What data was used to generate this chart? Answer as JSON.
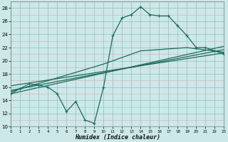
{
  "xlabel": "Humidex (Indice chaleur)",
  "bg_color": "#cce8e8",
  "grid_major_color": "#99bbbb",
  "grid_minor_color": "#ddaaaa",
  "line_color": "#1a6b5a",
  "xlim": [
    0,
    23
  ],
  "ylim": [
    10,
    29
  ],
  "xticks": [
    0,
    1,
    2,
    3,
    4,
    5,
    6,
    7,
    8,
    9,
    10,
    11,
    12,
    13,
    14,
    15,
    16,
    17,
    18,
    19,
    20,
    21,
    22,
    23
  ],
  "yticks": [
    10,
    12,
    14,
    16,
    18,
    20,
    22,
    24,
    26,
    28
  ],
  "curve_main_x": [
    0,
    1,
    2,
    3,
    4,
    5,
    6,
    7,
    8,
    9,
    10,
    11,
    12,
    13,
    14,
    15,
    16,
    17,
    18,
    19,
    20,
    21,
    22,
    23
  ],
  "curve_main_y": [
    15.0,
    15.8,
    16.5,
    16.3,
    16.0,
    15.0,
    12.3,
    13.8,
    11.0,
    10.5,
    16.0,
    23.8,
    26.5,
    27.0,
    28.2,
    27.0,
    26.8,
    26.8,
    25.3,
    23.8,
    22.0,
    22.0,
    21.5,
    21.0
  ],
  "lines": [
    {
      "x": [
        0,
        23
      ],
      "y": [
        15.0,
        22.2
      ]
    },
    {
      "x": [
        0,
        23
      ],
      "y": [
        15.5,
        21.7
      ]
    },
    {
      "x": [
        0,
        23
      ],
      "y": [
        16.2,
        21.2
      ]
    },
    {
      "x": [
        0,
        10,
        14,
        19,
        23
      ],
      "y": [
        15.3,
        19.5,
        21.5,
        22.0,
        21.3
      ]
    }
  ]
}
